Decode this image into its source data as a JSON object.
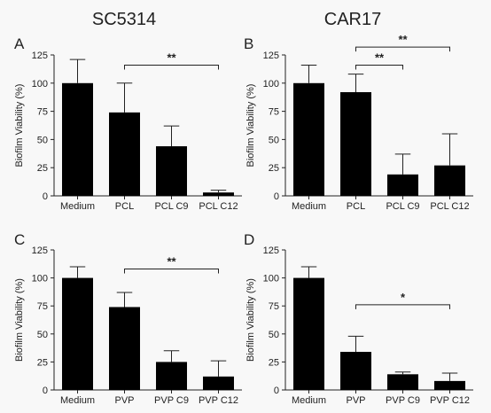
{
  "column_titles": [
    "SC5314",
    "CAR17"
  ],
  "chart_data": [
    {
      "type": "bar",
      "panel": "A",
      "categories": [
        "Medium",
        "PCL",
        "PCL C9",
        "PCL C12"
      ],
      "values": [
        100,
        74,
        44,
        3
      ],
      "errors": [
        21,
        26,
        18,
        2
      ],
      "ylabel": "Biofilm Viability (%)",
      "ylim": [
        0,
        125
      ],
      "yticks": [
        "0",
        "25",
        "50",
        "75",
        "100",
        "125"
      ],
      "significance": [
        {
          "from": 1,
          "to": 3,
          "label": "**",
          "y": 116
        }
      ]
    },
    {
      "type": "bar",
      "panel": "B",
      "categories": [
        "Medium",
        "PCL",
        "PCL C9",
        "PCL C12"
      ],
      "values": [
        100,
        92,
        19,
        27
      ],
      "errors": [
        16,
        16,
        18,
        28
      ],
      "ylabel": "Biofilm Viability (%)",
      "ylim": [
        0,
        125
      ],
      "yticks": [
        "0",
        "25",
        "50",
        "75",
        "100",
        "125"
      ],
      "significance": [
        {
          "from": 1,
          "to": 2,
          "label": "**",
          "y": 116
        },
        {
          "from": 1,
          "to": 3,
          "label": "**",
          "y": 132
        }
      ]
    },
    {
      "type": "bar",
      "panel": "C",
      "categories": [
        "Medium",
        "PVP",
        "PVP C9",
        "PVP C12"
      ],
      "values": [
        100,
        74,
        25,
        12
      ],
      "errors": [
        10,
        13,
        10,
        14
      ],
      "ylabel": "Biofilm Viability (%)",
      "ylim": [
        0,
        125
      ],
      "yticks": [
        "0",
        "25",
        "50",
        "75",
        "100",
        "125"
      ],
      "significance": [
        {
          "from": 1,
          "to": 3,
          "label": "**",
          "y": 108
        }
      ]
    },
    {
      "type": "bar",
      "panel": "D",
      "categories": [
        "Medium",
        "PVP",
        "PVP C9",
        "PVP C12"
      ],
      "values": [
        100,
        34,
        14,
        8
      ],
      "errors": [
        10,
        14,
        2,
        7
      ],
      "ylabel": "Biofilm Viability (%)",
      "ylim": [
        0,
        125
      ],
      "yticks": [
        "0",
        "25",
        "50",
        "75",
        "100",
        "125"
      ],
      "significance": [
        {
          "from": 1,
          "to": 3,
          "label": "*",
          "y": 76
        }
      ]
    }
  ]
}
